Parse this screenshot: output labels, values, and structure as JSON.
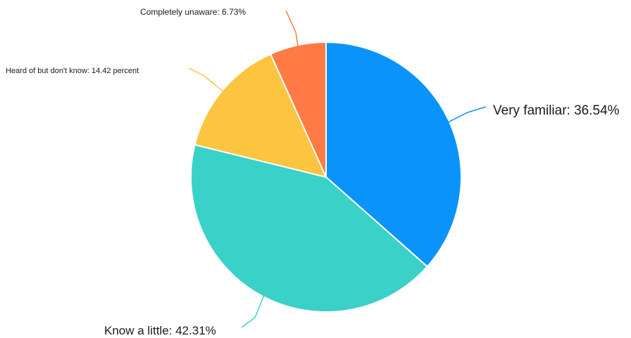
{
  "chart_data": {
    "type": "pie",
    "title": "",
    "slices": [
      {
        "name": "Very familiar",
        "value": 36.54,
        "label": "Very familiar: 36.54%",
        "color": "#0a93fb"
      },
      {
        "name": "Know a little",
        "value": 42.31,
        "label": "Know a little: 42.31%",
        "color": "#3ad1c8"
      },
      {
        "name": "Heard of but don't know",
        "value": 14.42,
        "label": "Heard of but don't know: 14.42 percent",
        "color": "#fdc440"
      },
      {
        "name": "Completely unaware",
        "value": 6.73,
        "label": "Completely unaware: 6.73%",
        "color": "#ff7a45"
      }
    ],
    "start_angle_deg": 0,
    "direction": "clockwise",
    "legend": "none"
  }
}
